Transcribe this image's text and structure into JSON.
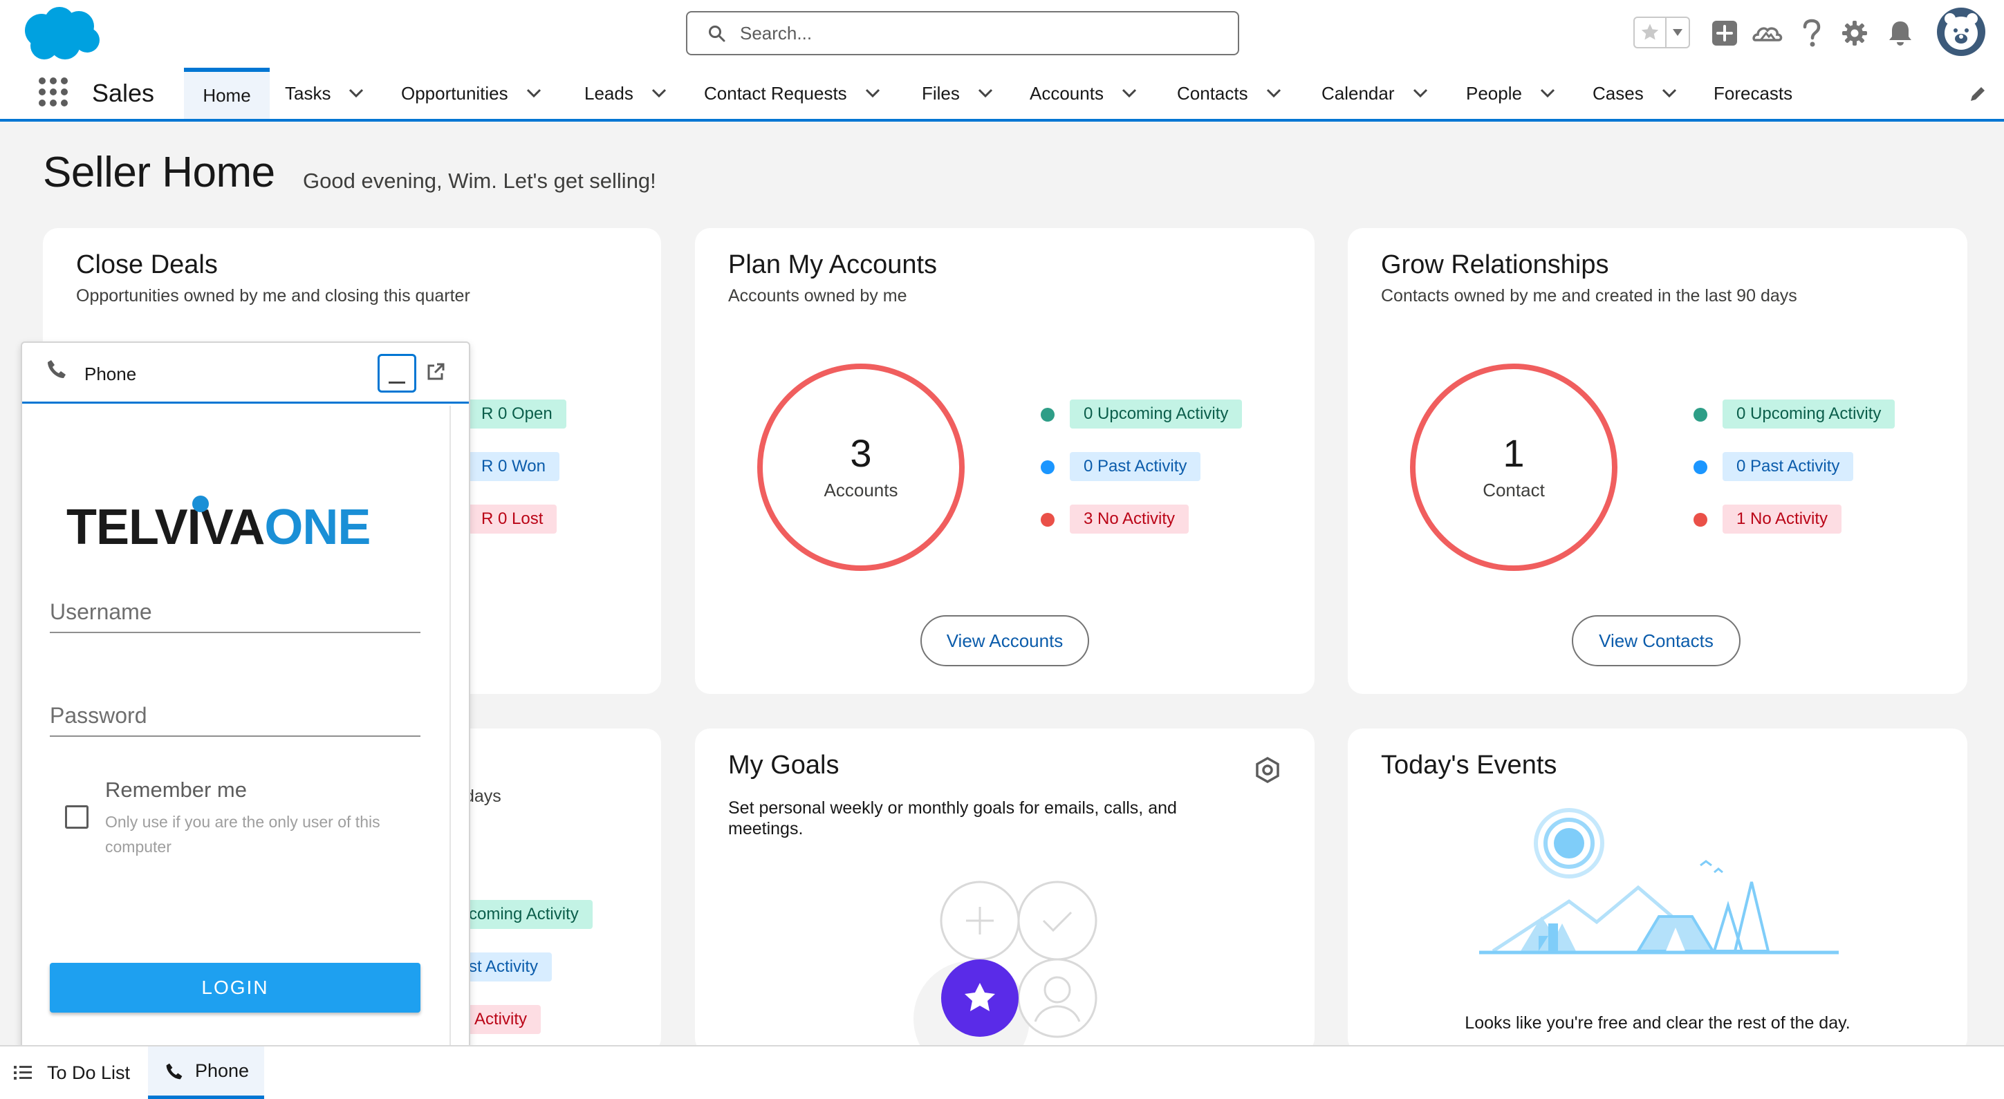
{
  "header": {
    "search_placeholder": "Search...",
    "icons": [
      "favorites-star-icon",
      "favorites-dropdown-icon",
      "global-add-icon",
      "trailhead-icon",
      "help-icon",
      "setup-gear-icon",
      "notifications-bell-icon",
      "user-avatar"
    ]
  },
  "nav": {
    "app_name": "Sales",
    "items": [
      {
        "label": "Home",
        "has_menu": false,
        "active": true
      },
      {
        "label": "Tasks",
        "has_menu": true
      },
      {
        "label": "Opportunities",
        "has_menu": true
      },
      {
        "label": "Leads",
        "has_menu": true
      },
      {
        "label": "Contact Requests",
        "has_menu": true
      },
      {
        "label": "Files",
        "has_menu": true
      },
      {
        "label": "Accounts",
        "has_menu": true
      },
      {
        "label": "Contacts",
        "has_menu": true
      },
      {
        "label": "Calendar",
        "has_menu": true
      },
      {
        "label": "People",
        "has_menu": true
      },
      {
        "label": "Cases",
        "has_menu": true
      },
      {
        "label": "Forecasts",
        "has_menu": false
      }
    ]
  },
  "page": {
    "title": "Seller Home",
    "greeting": "Good evening, Wim. Let's get selling!"
  },
  "close_deals": {
    "title": "Close Deals",
    "subtitle": "Opportunities owned by me and closing this quarter",
    "pills": [
      "R 0 Open",
      "R 0 Won",
      "R 0 Lost"
    ]
  },
  "plan_accounts": {
    "title": "Plan My Accounts",
    "subtitle": "Accounts owned by me",
    "count": "3",
    "count_label": "Accounts",
    "pills": [
      "0 Upcoming Activity",
      "0 Past Activity",
      "3 No Activity"
    ],
    "button": "View Accounts"
  },
  "grow_relationships": {
    "title": "Grow Relationships",
    "subtitle": "Contacts owned by me and created in the last 90 days",
    "count": "1",
    "count_label": "Contact",
    "pills": [
      "0 Upcoming Activity",
      "0 Past Activity",
      "1 No Activity"
    ],
    "button": "View Contacts"
  },
  "leads_card": {
    "subtitle_fragment": "days",
    "pills": [
      "coming Activity",
      "st Activity",
      "Activity"
    ]
  },
  "my_goals": {
    "title": "My Goals",
    "description": "Set personal weekly or monthly goals for emails, calls, and meetings."
  },
  "todays_events": {
    "title": "Today's Events",
    "empty_message": "Looks like you're free and clear the rest of the day."
  },
  "phone": {
    "header_label": "Phone",
    "logo_text_dark": "TELVIVA",
    "logo_text_blue": "ONE",
    "username_label": "Username",
    "password_label": "Password",
    "remember_label": "Remember me",
    "remember_hint": "Only use if you are the only user of this computer",
    "login_label": "LOGIN"
  },
  "utility": {
    "todo_label": "To Do List",
    "phone_label": "Phone"
  },
  "colors": {
    "brand_blue": "#0176d3",
    "ring_red": "#f05e5e",
    "dot_green": "#2e9e87",
    "dot_blue": "#1b96ff",
    "dot_red": "#ea5048",
    "login_blue": "#1ea0f0",
    "goal_star": "#5a2be8"
  }
}
